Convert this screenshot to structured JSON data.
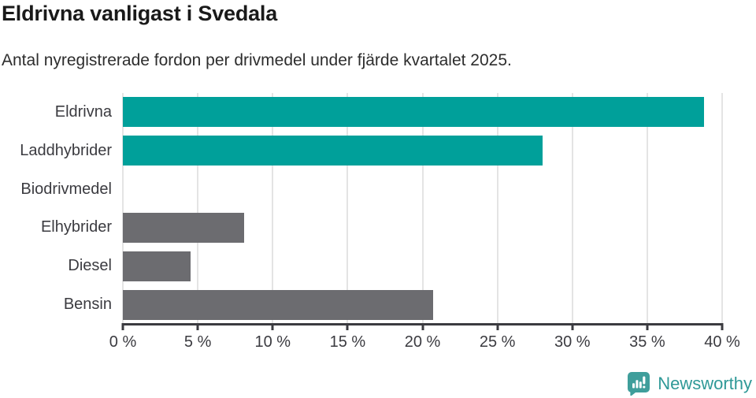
{
  "chart_data": {
    "type": "bar",
    "orientation": "horizontal",
    "title": "Eldrivna vanligast i Svedala",
    "subtitle": "Antal nyregistrerade fordon per drivmedel under fjärde kvartalet 2025.",
    "categories": [
      "Eldrivna",
      "Laddhybrider",
      "Biodrivmedel",
      "Elhybrider",
      "Diesel",
      "Bensin"
    ],
    "values": [
      38.8,
      28.0,
      0,
      8.1,
      4.5,
      20.7
    ],
    "unit": "%",
    "xlabel": "",
    "ylabel": "",
    "xlim": [
      0,
      40
    ],
    "xticks": [
      0,
      5,
      10,
      15,
      20,
      25,
      30,
      35,
      40
    ],
    "xtick_labels": [
      "0 %",
      "5 %",
      "10 %",
      "15 %",
      "20 %",
      "25 %",
      "30 %",
      "35 %",
      "40 %"
    ],
    "bar_colors": [
      "#00a09a",
      "#00a09a",
      "#6c6c70",
      "#6c6c70",
      "#6c6c70",
      "#6c6c70"
    ],
    "grid": "vertical-only",
    "legend": "none"
  },
  "colors": {
    "highlight": "#00a09a",
    "neutral": "#6c6c70",
    "gridline": "#e4e4e4",
    "axis": "#3b3b40",
    "title_text": "#1a1a1a",
    "brand_teal": "#2f9997"
  },
  "footer": {
    "brand": "Newsworthy",
    "logo_icon": "speech-bubble-bar-chart"
  }
}
